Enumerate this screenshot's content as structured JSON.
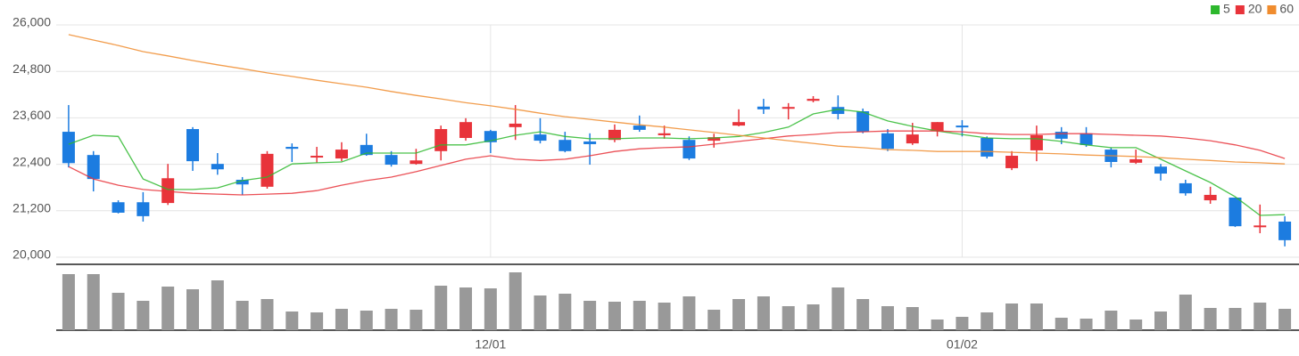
{
  "chart_data": {
    "type": "candlestick",
    "categories": [
      null,
      null,
      null,
      null,
      null,
      null,
      null,
      null,
      null,
      null,
      null,
      null,
      null,
      null,
      null,
      null,
      null,
      "12/01",
      null,
      null,
      null,
      null,
      null,
      null,
      null,
      null,
      null,
      null,
      null,
      null,
      null,
      null,
      null,
      null,
      null,
      null,
      "01/02",
      null,
      null,
      null,
      null,
      null,
      null,
      null,
      null,
      null,
      null,
      null,
      null,
      null
    ],
    "open": [
      23240,
      22640,
      21420,
      21420,
      21400,
      23310,
      22410,
      22000,
      21820,
      22850,
      22600,
      22550,
      22900,
      22640,
      22410,
      22740,
      23080,
      23260,
      23360,
      23170,
      23030,
      22990,
      23030,
      23400,
      23150,
      23030,
      23010,
      23400,
      23890,
      23860,
      24040,
      23880,
      23770,
      23200,
      22940,
      23260,
      23400,
      23080,
      22300,
      22760,
      23240,
      23200,
      22780,
      22440,
      22340,
      21910,
      21470,
      21540,
      20800,
      20920
    ],
    "high": [
      23930,
      22740,
      21470,
      21680,
      22410,
      23360,
      22690,
      22070,
      22740,
      22940,
      22850,
      22970,
      23190,
      22740,
      22800,
      23400,
      23590,
      23290,
      23930,
      23590,
      23240,
      23200,
      23430,
      23660,
      23400,
      23120,
      23190,
      23820,
      24090,
      23980,
      24160,
      24180,
      23840,
      23310,
      23470,
      23490,
      23540,
      23120,
      22740,
      23400,
      23360,
      23360,
      22830,
      22780,
      22410,
      22000,
      21820,
      21540,
      21360,
      21060
    ],
    "low": [
      22320,
      21700,
      21130,
      20920,
      21350,
      22230,
      22130,
      21610,
      21770,
      22460,
      22440,
      22480,
      22620,
      22340,
      22390,
      22500,
      23010,
      22690,
      23030,
      22940,
      22710,
      22390,
      22970,
      23240,
      23060,
      22510,
      22830,
      23380,
      23700,
      23560,
      24000,
      23560,
      23200,
      22740,
      22900,
      23120,
      23120,
      22550,
      22250,
      22480,
      22920,
      22850,
      22320,
      22410,
      21980,
      21590,
      21380,
      20780,
      20620,
      20280
    ],
    "close": [
      22430,
      22020,
      21150,
      21060,
      22040,
      22480,
      22270,
      21880,
      22670,
      22800,
      22620,
      22780,
      22640,
      22390,
      22500,
      23310,
      23490,
      22970,
      23450,
      23010,
      22740,
      22920,
      23290,
      23290,
      23200,
      22550,
      23100,
      23490,
      23820,
      23880,
      24090,
      23700,
      23240,
      22800,
      23170,
      23490,
      23380,
      22600,
      22620,
      23150,
      23060,
      22900,
      22460,
      22530,
      22160,
      21650,
      21610,
      20800,
      20820,
      20440
    ],
    "up_color": "#e8333a",
    "down_color": "#1c7ce0",
    "ylim": [
      20000,
      26000
    ],
    "yticks": [
      {
        "value": 20000,
        "label": "20,000"
      },
      {
        "value": 21200,
        "label": "21,200"
      },
      {
        "value": 22400,
        "label": "22,400"
      },
      {
        "value": 23600,
        "label": "23,600"
      },
      {
        "value": 24800,
        "label": "24,800"
      },
      {
        "value": 26000,
        "label": "26,000"
      }
    ],
    "grid": true,
    "legend": "top-right",
    "series": [
      {
        "name": "5",
        "color": "#2db82d",
        "values": [
          22920,
          23150,
          23120,
          22020,
          21750,
          21750,
          21790,
          21980,
          22070,
          22410,
          22440,
          22460,
          22690,
          22690,
          22690,
          22900,
          22900,
          23010,
          23150,
          23240,
          23120,
          23060,
          23060,
          23080,
          23080,
          23060,
          23080,
          23120,
          23220,
          23360,
          23700,
          23820,
          23750,
          23520,
          23380,
          23260,
          23170,
          23080,
          23060,
          23060,
          22990,
          22900,
          22830,
          22830,
          22530,
          22230,
          21930,
          21560,
          21080,
          21100
        ]
      },
      {
        "name": "20",
        "color": "#e8333a",
        "values": [
          22340,
          22020,
          21860,
          21750,
          21700,
          21650,
          21630,
          21610,
          21630,
          21650,
          21720,
          21860,
          21980,
          22070,
          22210,
          22370,
          22530,
          22620,
          22530,
          22500,
          22530,
          22620,
          22730,
          22800,
          22830,
          22850,
          22920,
          22990,
          23060,
          23130,
          23170,
          23220,
          23240,
          23260,
          23260,
          23260,
          23240,
          23190,
          23170,
          23170,
          23190,
          23190,
          23170,
          23150,
          23130,
          23080,
          23010,
          22900,
          22760,
          22550
        ]
      },
      {
        "name": "60",
        "color": "#f08c2e",
        "values": [
          25750,
          25610,
          25470,
          25310,
          25200,
          25080,
          24970,
          24870,
          24760,
          24670,
          24570,
          24480,
          24390,
          24280,
          24180,
          24090,
          23990,
          23910,
          23820,
          23720,
          23630,
          23560,
          23490,
          23420,
          23360,
          23290,
          23220,
          23150,
          23080,
          23010,
          22940,
          22870,
          22830,
          22780,
          22760,
          22730,
          22730,
          22730,
          22710,
          22690,
          22670,
          22640,
          22620,
          22600,
          22570,
          22530,
          22500,
          22460,
          22440,
          22410
        ]
      }
    ],
    "volume": {
      "color": "#999999",
      "values": [
        63,
        63,
        42,
        33,
        49,
        46,
        56,
        33,
        35,
        21,
        20,
        24,
        22,
        24,
        23,
        50,
        48,
        47,
        65,
        39,
        41,
        33,
        32,
        33,
        31,
        38,
        23,
        35,
        38,
        27,
        29,
        48,
        35,
        27,
        26,
        12,
        15,
        20,
        30,
        30,
        14,
        13,
        22,
        12,
        21,
        40,
        25,
        25,
        31,
        24
      ]
    }
  }
}
